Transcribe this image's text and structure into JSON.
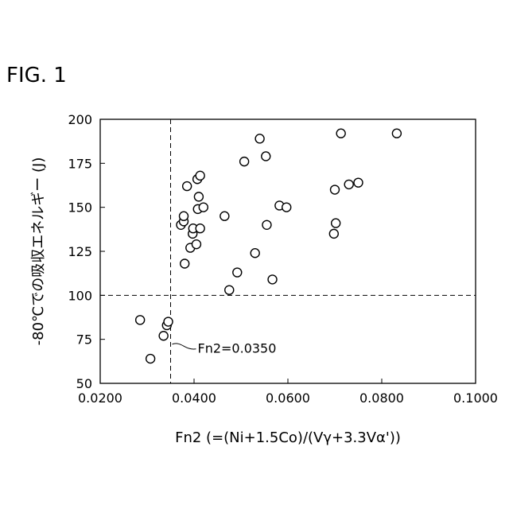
{
  "figure_label": "FIG. 1",
  "chart_data": {
    "type": "scatter",
    "xlabel": "Fn2 (=(Ni+1.5Co)/(Vγ+3.3Vα'))",
    "ylabel": "-80℃での吸収エネルギー (J)",
    "xlim": [
      0.02,
      0.1
    ],
    "ylim": [
      50,
      200
    ],
    "x_ticks": [
      0.02,
      0.04,
      0.06,
      0.08,
      0.1
    ],
    "x_tick_labels": [
      "0.0200",
      "0.0400",
      "0.0600",
      "0.0800",
      "0.1000"
    ],
    "y_ticks": [
      50,
      75,
      100,
      125,
      150,
      175,
      200
    ],
    "y_tick_labels": [
      "50",
      "75",
      "100",
      "125",
      "150",
      "175",
      "200"
    ],
    "grid": false,
    "marker": "open-circle",
    "reference_lines": [
      {
        "orientation": "vertical",
        "value": 0.035,
        "style": "dashed"
      },
      {
        "orientation": "horizontal",
        "value": 100,
        "style": "dashed"
      }
    ],
    "annotations": [
      {
        "text": "Fn2=0.0350",
        "x": 0.035,
        "y": 70
      }
    ],
    "points": [
      {
        "x": 0.0285,
        "y": 86
      },
      {
        "x": 0.0307,
        "y": 64
      },
      {
        "x": 0.0335,
        "y": 77
      },
      {
        "x": 0.0342,
        "y": 83
      },
      {
        "x": 0.0345,
        "y": 85
      },
      {
        "x": 0.0372,
        "y": 140
      },
      {
        "x": 0.0378,
        "y": 142
      },
      {
        "x": 0.0378,
        "y": 145
      },
      {
        "x": 0.038,
        "y": 118
      },
      {
        "x": 0.0385,
        "y": 162
      },
      {
        "x": 0.0392,
        "y": 127
      },
      {
        "x": 0.0397,
        "y": 135
      },
      {
        "x": 0.0398,
        "y": 138
      },
      {
        "x": 0.0405,
        "y": 129
      },
      {
        "x": 0.0407,
        "y": 166
      },
      {
        "x": 0.0408,
        "y": 149
      },
      {
        "x": 0.041,
        "y": 156
      },
      {
        "x": 0.0413,
        "y": 168
      },
      {
        "x": 0.0413,
        "y": 138
      },
      {
        "x": 0.042,
        "y": 150
      },
      {
        "x": 0.0465,
        "y": 145
      },
      {
        "x": 0.0475,
        "y": 103
      },
      {
        "x": 0.0492,
        "y": 113
      },
      {
        "x": 0.0507,
        "y": 176
      },
      {
        "x": 0.053,
        "y": 124
      },
      {
        "x": 0.054,
        "y": 189
      },
      {
        "x": 0.0553,
        "y": 179
      },
      {
        "x": 0.0555,
        "y": 140
      },
      {
        "x": 0.0567,
        "y": 109
      },
      {
        "x": 0.0582,
        "y": 151
      },
      {
        "x": 0.0597,
        "y": 150
      },
      {
        "x": 0.0698,
        "y": 135
      },
      {
        "x": 0.07,
        "y": 160
      },
      {
        "x": 0.0702,
        "y": 141
      },
      {
        "x": 0.0713,
        "y": 192
      },
      {
        "x": 0.073,
        "y": 163
      },
      {
        "x": 0.075,
        "y": 164
      },
      {
        "x": 0.0832,
        "y": 192
      }
    ]
  }
}
